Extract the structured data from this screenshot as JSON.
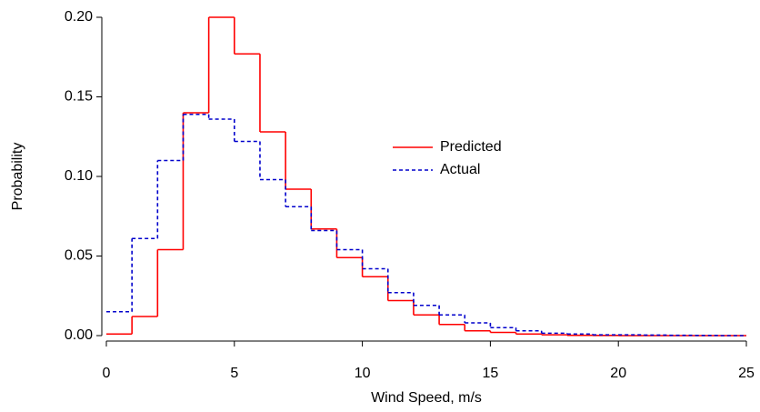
{
  "chart_data": {
    "type": "step-histogram",
    "xlabel": "Wind Speed, m/s",
    "ylabel": "Probability",
    "bins": [
      0,
      1,
      2,
      3,
      4,
      5,
      6,
      7,
      8,
      9,
      10,
      11,
      12,
      13,
      14,
      15,
      16,
      17,
      18,
      19,
      20,
      21,
      22,
      23,
      24,
      25
    ],
    "series": [
      {
        "name": "Predicted",
        "color": "#ff0000",
        "dash": "solid",
        "values": [
          0.001,
          0.012,
          0.054,
          0.14,
          0.2,
          0.177,
          0.128,
          0.092,
          0.067,
          0.049,
          0.037,
          0.022,
          0.013,
          0.007,
          0.003,
          0.002,
          0.001,
          0.0005,
          0.0002,
          0.0001,
          0,
          0,
          0,
          0,
          0
        ]
      },
      {
        "name": "Actual",
        "color": "#0000cc",
        "dash": "dashed",
        "values": [
          0.015,
          0.061,
          0.11,
          0.139,
          0.136,
          0.122,
          0.098,
          0.081,
          0.066,
          0.054,
          0.042,
          0.027,
          0.019,
          0.013,
          0.008,
          0.005,
          0.003,
          0.0015,
          0.001,
          0.0005,
          0.0005,
          0.0003,
          0.0002,
          0.0001,
          0
        ]
      }
    ],
    "xlim": [
      0,
      25
    ],
    "xticks": [
      0,
      5,
      10,
      15,
      20,
      25
    ],
    "ylim": [
      0,
      0.2
    ],
    "yticks": [
      {
        "value": 0,
        "label": "0.00"
      },
      {
        "value": 0.05,
        "label": "0.05"
      },
      {
        "value": 0.1,
        "label": "0.10"
      },
      {
        "value": 0.15,
        "label": "0.15"
      },
      {
        "value": 0.2,
        "label": "0.20"
      }
    ],
    "grid": false,
    "legend": "center"
  }
}
